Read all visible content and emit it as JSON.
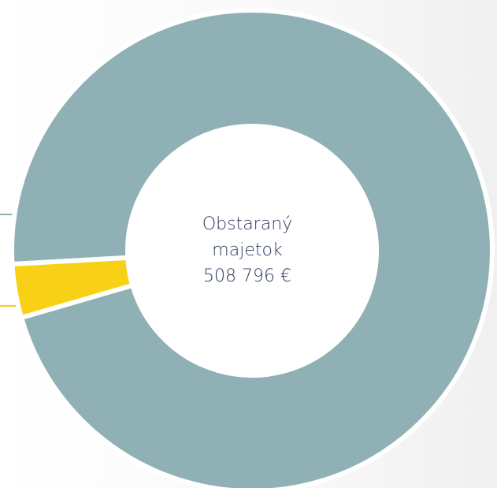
{
  "chart_data": {
    "type": "donut",
    "center_label": [
      "Obstaraný",
      "majetok",
      "508 796 €"
    ],
    "series": [
      {
        "color": "#8fb1b5",
        "value": 96.4
      },
      {
        "color": "#f8d117",
        "value": 3.6
      }
    ]
  }
}
